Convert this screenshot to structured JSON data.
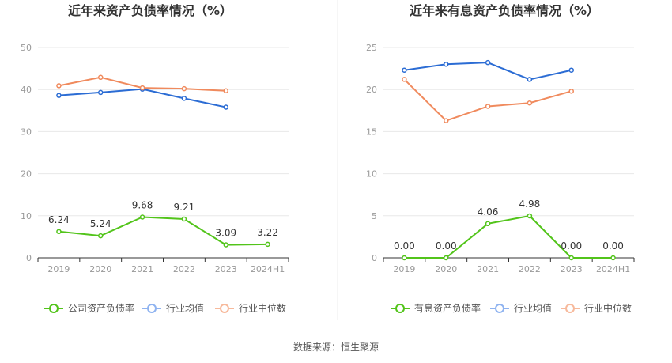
{
  "colors": {
    "company": "#52c41a",
    "industry_avg": "#2b6cd4",
    "industry_median": "#f08a5d",
    "legend_avg": "#8fb3f0",
    "legend_median": "#f7b99b"
  },
  "source": "数据来源：恒生聚源",
  "chart_data": [
    {
      "type": "line",
      "title": "近年来资产负债率情况（%）",
      "categories": [
        "2019",
        "2020",
        "2021",
        "2022",
        "2023",
        "2024H1"
      ],
      "ylim": [
        0,
        50
      ],
      "yticks": [
        "0",
        "10",
        "20",
        "30",
        "40",
        "50"
      ],
      "grid": true,
      "legend_position": "bottom",
      "series": [
        {
          "name": "公司资产负债率",
          "values": [
            6.24,
            5.24,
            9.68,
            9.21,
            3.09,
            3.22
          ],
          "labels": [
            "6.24",
            "5.24",
            "9.68",
            "9.21",
            "3.09",
            "3.22"
          ]
        },
        {
          "name": "行业均值",
          "values": [
            38.6,
            39.3,
            40.1,
            37.9,
            35.8,
            null
          ]
        },
        {
          "name": "行业中位数",
          "values": [
            40.9,
            42.9,
            40.4,
            40.2,
            39.7,
            null
          ]
        }
      ]
    },
    {
      "type": "line",
      "title": "近年来有息资产负债率情况（%）",
      "categories": [
        "2019",
        "2020",
        "2021",
        "2022",
        "2023",
        "2024H1"
      ],
      "ylim": [
        0,
        25
      ],
      "yticks": [
        "0",
        "5",
        "10",
        "15",
        "20",
        "25"
      ],
      "grid": true,
      "legend_position": "bottom",
      "series": [
        {
          "name": "有息资产负债率",
          "values": [
            0.0,
            0.0,
            4.06,
            4.98,
            0.0,
            0.0
          ],
          "labels": [
            "0.00",
            "0.00",
            "4.06",
            "4.98",
            "0.00",
            "0.00"
          ]
        },
        {
          "name": "行业均值",
          "values": [
            22.3,
            23.0,
            23.2,
            21.2,
            22.3,
            null
          ]
        },
        {
          "name": "行业中位数",
          "values": [
            21.2,
            16.3,
            18.0,
            18.4,
            19.8,
            null
          ]
        }
      ]
    }
  ]
}
